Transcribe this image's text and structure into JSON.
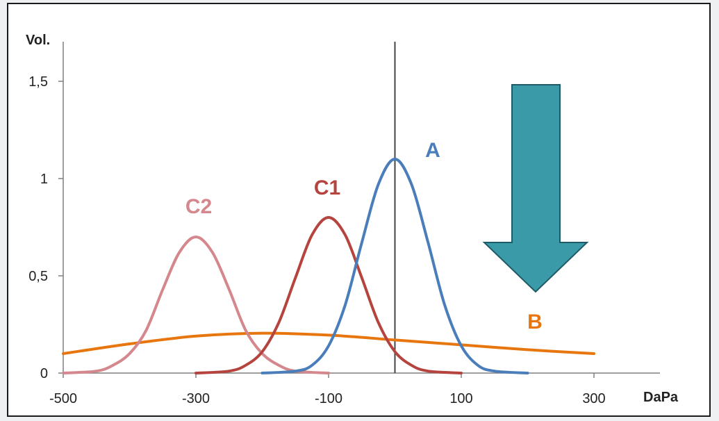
{
  "chart_data": {
    "type": "line",
    "title": "",
    "xlabel": "DaPa",
    "ylabel": "Vol.",
    "xlim": [
      -500,
      300
    ],
    "ylim": [
      0,
      1.65
    ],
    "x_ticks": [
      -500,
      -300,
      -100,
      100,
      300
    ],
    "x_tick_labels": [
      "-500",
      "-300",
      "-100",
      "100",
      "300"
    ],
    "y_ticks": [
      0,
      0.5,
      1,
      1.5
    ],
    "y_tick_labels": [
      "0",
      "0,5",
      "1",
      "1,5"
    ],
    "reference_line_x": 0,
    "series": [
      {
        "name": "A",
        "color": "#4a7ebb",
        "x": [
          -200,
          -150,
          -125,
          -100,
          -75,
          -50,
          -25,
          0,
          25,
          50,
          75,
          100,
          125,
          150,
          200
        ],
        "y": [
          0.0,
          0.01,
          0.04,
          0.14,
          0.35,
          0.67,
          0.97,
          1.1,
          0.97,
          0.67,
          0.35,
          0.14,
          0.04,
          0.01,
          0.0
        ]
      },
      {
        "name": "C1",
        "color": "#b5443f",
        "x": [
          -300,
          -250,
          -225,
          -200,
          -175,
          -150,
          -125,
          -100,
          -75,
          -50,
          -25,
          0,
          25,
          50,
          100
        ],
        "y": [
          0.0,
          0.01,
          0.04,
          0.11,
          0.26,
          0.49,
          0.71,
          0.8,
          0.71,
          0.49,
          0.26,
          0.11,
          0.04,
          0.01,
          0.0
        ]
      },
      {
        "name": "C2",
        "color": "#d4878c",
        "x": [
          -500,
          -450,
          -425,
          -400,
          -375,
          -350,
          -325,
          -300,
          -275,
          -250,
          -225,
          -200,
          -175,
          -150,
          -100
        ],
        "y": [
          0.0,
          0.01,
          0.04,
          0.1,
          0.22,
          0.43,
          0.62,
          0.7,
          0.62,
          0.43,
          0.22,
          0.1,
          0.04,
          0.01,
          0.0
        ]
      },
      {
        "name": "B",
        "color": "#e8760f",
        "x": [
          -500,
          -400,
          -300,
          -200,
          -100,
          0,
          100,
          200,
          300
        ],
        "y": [
          0.1,
          0.15,
          0.19,
          0.205,
          0.195,
          0.17,
          0.145,
          0.12,
          0.1
        ]
      }
    ],
    "series_labels": {
      "A": "A",
      "C1": "C1",
      "C2": "C2",
      "B": "B"
    }
  },
  "annotations": {
    "arrow": {
      "direction": "down",
      "color": "#3a9aa8",
      "border": "#1e5b66"
    }
  }
}
